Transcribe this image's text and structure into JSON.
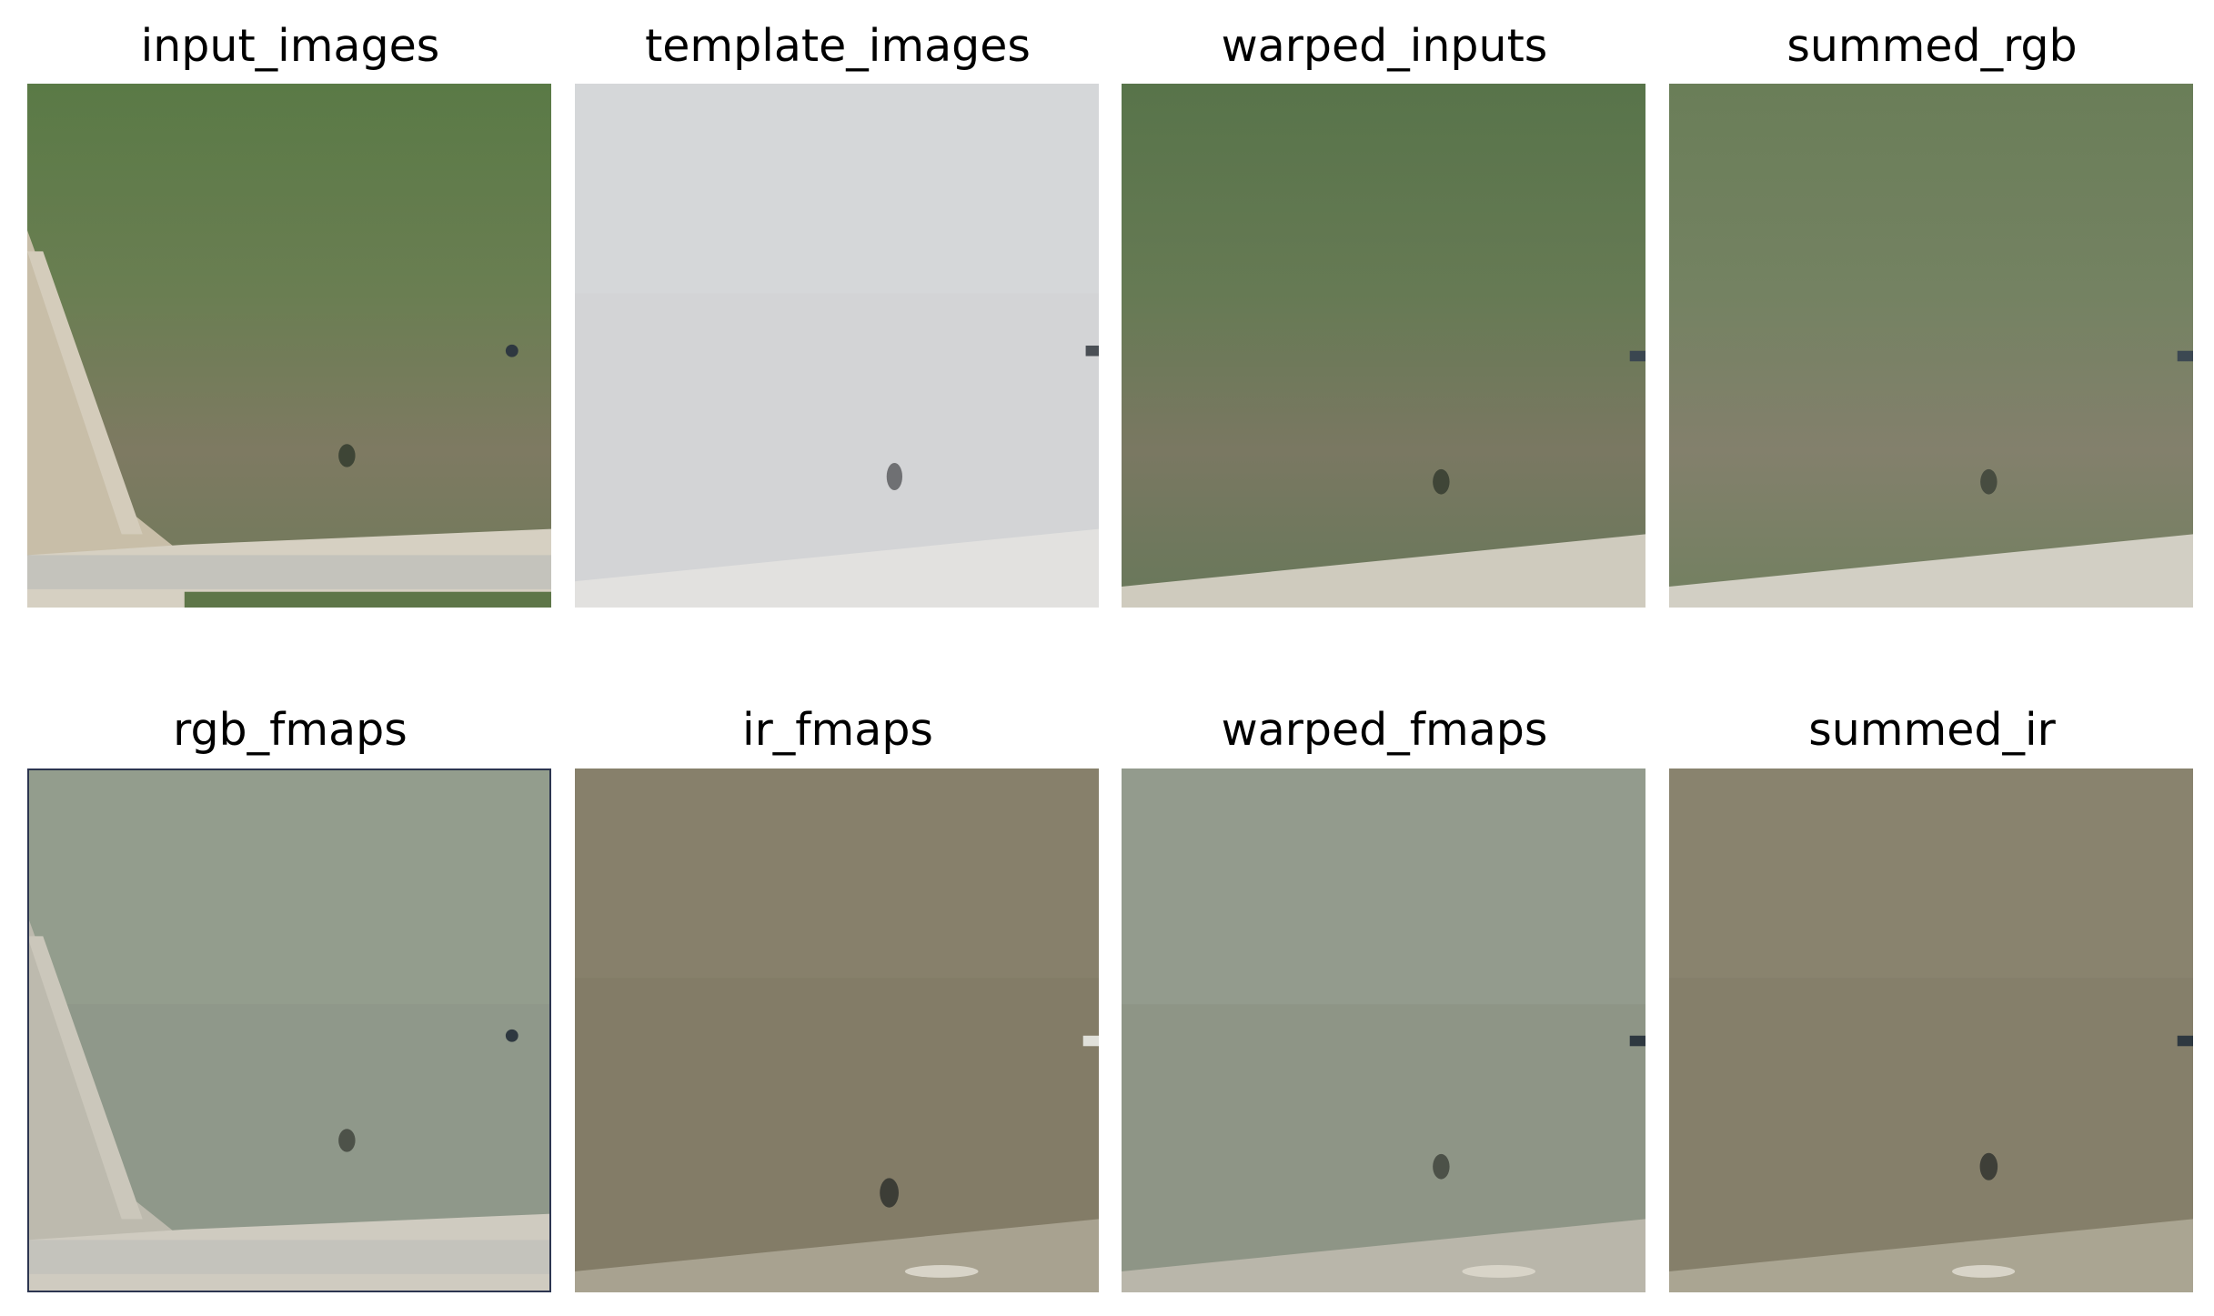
{
  "panels": [
    {
      "title": "input_images"
    },
    {
      "title": "template_images"
    },
    {
      "title": "warped_inputs"
    },
    {
      "title": "summed_rgb"
    },
    {
      "title": "rgb_fmaps"
    },
    {
      "title": "ir_fmaps"
    },
    {
      "title": "warped_fmaps"
    },
    {
      "title": "summed_ir"
    }
  ],
  "colors": {
    "field_green": "#5e7a4c",
    "field_brown": "#7d7560",
    "road": "#c9c7bd",
    "template_gray": "#d4d5d7",
    "fmap_gray_green": "#8e9688",
    "fmap_olive": "#837c66",
    "background": "#ffffff"
  }
}
